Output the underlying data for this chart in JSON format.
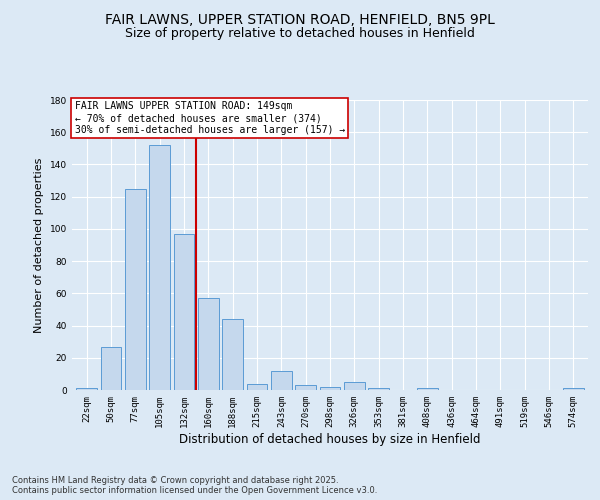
{
  "title": "FAIR LAWNS, UPPER STATION ROAD, HENFIELD, BN5 9PL",
  "subtitle": "Size of property relative to detached houses in Henfield",
  "xlabel": "Distribution of detached houses by size in Henfield",
  "ylabel": "Number of detached properties",
  "categories": [
    "22sqm",
    "50sqm",
    "77sqm",
    "105sqm",
    "132sqm",
    "160sqm",
    "188sqm",
    "215sqm",
    "243sqm",
    "270sqm",
    "298sqm",
    "326sqm",
    "353sqm",
    "381sqm",
    "408sqm",
    "436sqm",
    "464sqm",
    "491sqm",
    "519sqm",
    "546sqm",
    "574sqm"
  ],
  "values": [
    1,
    27,
    125,
    152,
    97,
    57,
    44,
    4,
    12,
    3,
    2,
    5,
    1,
    0,
    1,
    0,
    0,
    0,
    0,
    0,
    1
  ],
  "bar_color": "#c5d8ed",
  "bar_edge_color": "#5b9bd5",
  "vline_color": "#cc0000",
  "ylim": [
    0,
    180
  ],
  "yticks": [
    0,
    20,
    40,
    60,
    80,
    100,
    120,
    140,
    160,
    180
  ],
  "annotation_text": "FAIR LAWNS UPPER STATION ROAD: 149sqm\n← 70% of detached houses are smaller (374)\n30% of semi-detached houses are larger (157) →",
  "annotation_box_color": "#ffffff",
  "annotation_box_edge": "#cc0000",
  "bg_color": "#dce9f5",
  "plot_bg_color": "#dce9f5",
  "footer_text": "Contains HM Land Registry data © Crown copyright and database right 2025.\nContains public sector information licensed under the Open Government Licence v3.0.",
  "title_fontsize": 10,
  "subtitle_fontsize": 9,
  "xlabel_fontsize": 8.5,
  "ylabel_fontsize": 8,
  "tick_fontsize": 6.5,
  "footer_fontsize": 6,
  "annotation_fontsize": 7
}
